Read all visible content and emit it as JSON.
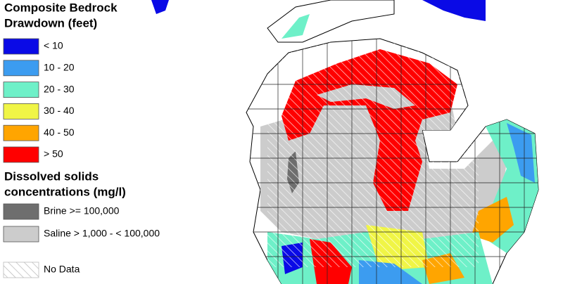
{
  "legend_drawdown": {
    "title_lines": [
      "Composite Bedrock",
      "Drawdown (feet)"
    ],
    "items": [
      {
        "label": "< 10",
        "color": "#0a0ae6"
      },
      {
        "label": "10 - 20",
        "color": "#3c9cf0"
      },
      {
        "label": "20 - 30",
        "color": "#6ef0c8"
      },
      {
        "label": "30 - 40",
        "color": "#f0f546"
      },
      {
        "label": "40 - 50",
        "color": "#ffa500"
      },
      {
        "label": "> 50",
        "color": "#ff0000"
      }
    ]
  },
  "legend_solids": {
    "title_lines": [
      "Dissolved solids",
      "concentrations (mg/l)"
    ],
    "items": [
      {
        "label": "Brine >= 100,000",
        "color": "#6e6e6e"
      },
      {
        "label": "Saline > 1,000 - < 100,000",
        "color": "#cccccc"
      }
    ]
  },
  "no_data": "No Data"
}
